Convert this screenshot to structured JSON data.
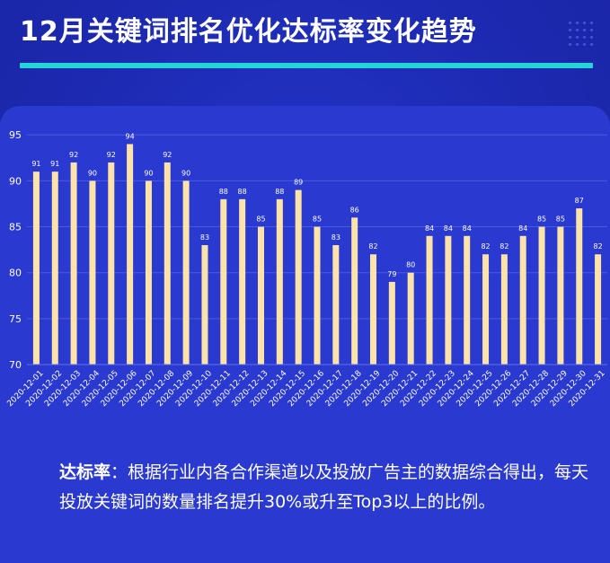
{
  "title": "12月关键词排名优化达标率变化趋势",
  "note": {
    "term": "达标率",
    "colon": "：",
    "text": "根据行业内各合作渠道以及投放广告主的数据综合得出，每天投放关键词的数量排名提升30%或升至Top3以上的比例。"
  },
  "colors": {
    "background": "#1d2bb8",
    "panel": "#2a3ad0",
    "bar": "#fde3a7",
    "accent_line": "#22d6d6",
    "text": "#ffffff"
  },
  "chart_data": {
    "type": "bar",
    "categories": [
      "2020-12-01",
      "2020-12-02",
      "2020-12-03",
      "2020-12-04",
      "2020-12-05",
      "2020-12-06",
      "2020-12-07",
      "2020-12-08",
      "2020-12-09",
      "2020-12-10",
      "2020-12-11",
      "2020-12-12",
      "2020-12-13",
      "2020-12-14",
      "2020-12-15",
      "2020-12-16",
      "2020-12-17",
      "2020-12-18",
      "2020-12-19",
      "2020-12-20",
      "2020-12-21",
      "2020-12-22",
      "2020-12-23",
      "2020-12-24",
      "2020-12-25",
      "2020-12-26",
      "2020-12-27",
      "2020-12-28",
      "2020-12-29",
      "2020-12-30",
      "2020-12-31"
    ],
    "values": [
      91,
      91,
      92,
      90,
      92,
      94,
      90,
      92,
      90,
      83,
      88,
      88,
      85,
      88,
      89,
      85,
      83,
      86,
      82,
      79,
      80,
      84,
      84,
      84,
      82,
      82,
      84,
      85,
      85,
      87,
      82
    ],
    "yticks": [
      70,
      75,
      80,
      85,
      90,
      95
    ],
    "ylim": [
      70,
      96
    ],
    "grid": true,
    "data_labels": true
  }
}
